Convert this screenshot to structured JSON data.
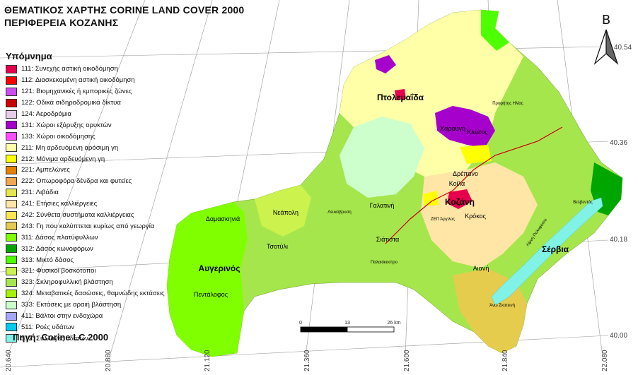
{
  "titles": {
    "line1": "ΘΕΜΑΤΙΚΟΣ ΧΑΡΤΗΣ CORINE LAND COVER 2000",
    "line2": "ΠΕΡΙΦΕΡΕΙΑ ΚΟΖΑΝΗΣ"
  },
  "legend": {
    "heading": "Υπόμνημα",
    "items": [
      {
        "label": "111: Συνεχής αστική οικοδόμηση",
        "color": "#e6004d"
      },
      {
        "label": "112: Διασκεκομένη αστική οικοδόμηση",
        "color": "#ff0000"
      },
      {
        "label": "121: Βιομηχανικές ή εμπορικές ζώνες",
        "color": "#cc4df2"
      },
      {
        "label": "122: Οδικά σιδηροδρομικά δίκτυα",
        "color": "#cc0000"
      },
      {
        "label": "124: Αεροδρόμια",
        "color": "#e6cce6"
      },
      {
        "label": "131: Χώροι εξόρυξης ορυκτών",
        "color": "#a600cc"
      },
      {
        "label": "133: Χώροι οικοδόμησης",
        "color": "#ff4dff"
      },
      {
        "label": "211: Μη αρδευόμενη αρόσιμη γη",
        "color": "#ffffa8"
      },
      {
        "label": "212: Μόνιμα αρδευόμενη γη",
        "color": "#ffff00"
      },
      {
        "label": "221: Αμπελώνες",
        "color": "#e68000"
      },
      {
        "label": "222: Οπωροφόρα δένδρα και φυτείες",
        "color": "#f2a64d"
      },
      {
        "label": "231: Λιβάδια",
        "color": "#e6e64d"
      },
      {
        "label": "241: Ετήσιες καλλιέργειες",
        "color": "#ffe6a6"
      },
      {
        "label": "242: Σύνθετα συστήματα καλλιέργειας",
        "color": "#ffe64d"
      },
      {
        "label": "243: Γη που καλύπτεται κυρίως από γεωργία",
        "color": "#e6cc4d"
      },
      {
        "label": "311: Δάσος πλατύφυλλων",
        "color": "#80ff00"
      },
      {
        "label": "312: Δάσος κωνοφόρων",
        "color": "#00a600"
      },
      {
        "label": "313: Μικτό δάσος",
        "color": "#4dff00"
      },
      {
        "label": "321: Φυσικοί βοσκότοποι",
        "color": "#ccf24d"
      },
      {
        "label": "323: Σκληροφυλλική βλάστηση",
        "color": "#a6e64d"
      },
      {
        "label": "324: Μεταβατικές δασώσεις, θαμνώδης εκτάσεις",
        "color": "#a6f200"
      },
      {
        "label": "333: Εκτάσεις με αραιή βλάστηση",
        "color": "#ccffcc"
      },
      {
        "label": "411: Βάλτοι στην ενδοχώρα",
        "color": "#a6a6ff"
      },
      {
        "label": "511: Ροές υδάτων",
        "color": "#00ccf2"
      },
      {
        "label": "512: Συλλογές υδάτων",
        "color": "#80f2e6"
      }
    ]
  },
  "source": "Πηγή: Corine LC 2000",
  "north_arrow": {
    "letter": "B"
  },
  "scale_bar": {
    "labels": [
      "0",
      "13",
      "26 km"
    ]
  },
  "coords": {
    "bottom": [
      "20.640",
      "20.880",
      "21.120",
      "21.360",
      "21.600",
      "21.840",
      "22.080"
    ],
    "right": [
      "40.54",
      "40.36",
      "40.18",
      "40.00"
    ]
  },
  "places": {
    "ptolemaida": "Πτολεμαΐδα",
    "kozani": "Κοζάνη",
    "servia": "Σέρβια",
    "siatista": "Σιάτιστα",
    "tsotyli": "Τσοτύλι",
    "neapoli": "Νεάπολη",
    "galatini": "Γαλατινή",
    "aiani": "Αιανή",
    "krokos": "Κρόκος",
    "koila": "Κοίλα",
    "drepano": "Δρέπανο",
    "argilos": "ΖΕΠ Άργιλος",
    "palaiokastro": "Παλαιόκαστρο",
    "damaskinia": "Δαμασκηνιά",
    "avgerinos": "Αυγερινός",
    "pentalofos": "Πεντάλοφος",
    "xaravgi": "Χαραυγή",
    "kleitos": "Κλείτος",
    "profitis_ilias": "Προφήτης Ηλίας",
    "velventos": "Βελβεντός",
    "lefkopigi": "Λευκόβρυση",
    "limni": "Λίμνη Πολυφύτου",
    "rymnio": "Άνω Σκοτεινή"
  }
}
